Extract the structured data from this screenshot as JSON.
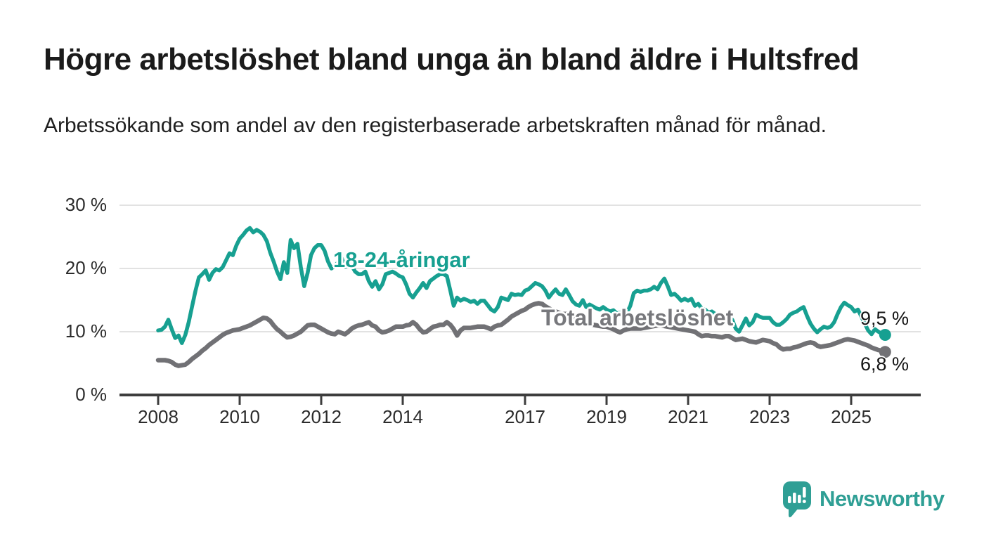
{
  "title": "Högre arbetslöshet bland unga än bland äldre i Hultsfred",
  "subtitle": "Arbetssökande som andel av den registerbaserade arbetskraften månad för månad.",
  "branding": {
    "logo_text": "Newsworthy",
    "logo_icon": "bar-chart-speech-bubble-icon",
    "brand_color": "#2f9f95"
  },
  "colors": {
    "young_line": "#17a091",
    "total_line": "#717175",
    "total_label": "#77787c",
    "grid": "#d8d8d8",
    "axis": "#3d3d3d",
    "tick_text": "#2c2c2c",
    "end_label_text": "#141414"
  },
  "chart_data": {
    "type": "line",
    "x_start_year": 2008,
    "x_step_months": 1,
    "x_end": "2025-11",
    "ylim": [
      0,
      33
    ],
    "grid": "horizontal",
    "y_ticks": [
      {
        "value": 0,
        "label": "0 %"
      },
      {
        "value": 10,
        "label": "10 %"
      },
      {
        "value": 20,
        "label": "20 %"
      },
      {
        "value": 30,
        "label": "30 %"
      }
    ],
    "x_ticks": [
      {
        "year": 2008,
        "label": "2008"
      },
      {
        "year": 2010,
        "label": "2010"
      },
      {
        "year": 2012,
        "label": "2012"
      },
      {
        "year": 2014,
        "label": "2014"
      },
      {
        "year": 2017,
        "label": "2017"
      },
      {
        "year": 2019,
        "label": "2019"
      },
      {
        "year": 2021,
        "label": "2021"
      },
      {
        "year": 2023,
        "label": "2023"
      },
      {
        "year": 2025,
        "label": "2025"
      }
    ],
    "series": [
      {
        "name": "18-24-åringar",
        "color": "#17a091",
        "end_label": "9,5 %",
        "end_value": 9.5,
        "values": [
          10.2,
          10.3,
          10.8,
          11.9,
          10.4,
          9.0,
          9.4,
          8.2,
          9.5,
          11.5,
          14.0,
          16.5,
          18.6,
          19.1,
          19.7,
          18.2,
          19.3,
          19.9,
          19.7,
          20.2,
          21.3,
          22.4,
          22.1,
          23.6,
          24.7,
          25.3,
          26.0,
          26.4,
          25.7,
          26.1,
          25.8,
          25.3,
          24.3,
          22.5,
          21.1,
          19.5,
          18.3,
          21.0,
          19.3,
          24.5,
          23.2,
          23.9,
          20.2,
          17.2,
          19.3,
          22.1,
          23.2,
          23.7,
          23.7,
          22.8,
          21.1,
          20.0,
          20.4,
          21.0,
          21.7,
          20.2,
          20.6,
          20.4,
          19.5,
          19.1,
          19.1,
          19.5,
          18.0,
          17.1,
          18.0,
          16.7,
          17.5,
          19.1,
          19.3,
          19.5,
          19.2,
          18.8,
          18.6,
          17.5,
          16.0,
          15.4,
          16.2,
          16.9,
          17.7,
          16.9,
          18.0,
          18.4,
          18.8,
          19.1,
          19.1,
          18.8,
          16.5,
          14.1,
          15.4,
          14.9,
          15.2,
          15.0,
          14.7,
          14.9,
          14.4,
          14.9,
          14.9,
          14.2,
          13.5,
          13.2,
          13.9,
          15.4,
          15.2,
          15.0,
          16.0,
          15.8,
          15.9,
          15.8,
          16.5,
          16.7,
          17.2,
          17.7,
          17.5,
          17.2,
          16.5,
          15.4,
          16.1,
          16.7,
          16.0,
          15.8,
          16.7,
          15.8,
          14.8,
          14.3,
          14.1,
          15.0,
          13.9,
          14.3,
          14.0,
          13.7,
          13.5,
          13.9,
          13.5,
          13.2,
          13.4,
          12.9,
          13.0,
          13.2,
          13.0,
          14.1,
          16.1,
          16.5,
          16.3,
          16.5,
          16.5,
          16.7,
          17.1,
          16.7,
          17.7,
          18.4,
          17.2,
          15.8,
          16.0,
          15.5,
          14.9,
          15.2,
          14.9,
          15.2,
          14.1,
          14.4,
          13.7,
          13.5,
          13.0,
          13.2,
          12.8,
          12.2,
          11.9,
          11.5,
          12.2,
          11.9,
          10.5,
          10.0,
          11.0,
          12.1,
          11.0,
          11.5,
          12.7,
          12.4,
          12.2,
          12.2,
          12.2,
          11.5,
          11.1,
          11.1,
          11.5,
          12.0,
          12.7,
          13.0,
          13.2,
          13.6,
          13.9,
          12.5,
          11.3,
          10.5,
          9.9,
          10.4,
          10.8,
          10.6,
          10.8,
          11.5,
          12.8,
          13.9,
          14.6,
          14.2,
          13.9,
          13.2,
          13.5,
          12.4,
          11.3,
          10.2,
          9.6,
          10.4,
          10.0,
          9.7,
          9.5
        ]
      },
      {
        "name": "Total arbetslöshet",
        "color": "#717175",
        "end_label": "6,8 %",
        "end_value": 6.8,
        "values": [
          5.5,
          5.5,
          5.5,
          5.4,
          5.2,
          4.8,
          4.6,
          4.7,
          4.8,
          5.2,
          5.7,
          6.1,
          6.5,
          7.0,
          7.4,
          7.9,
          8.3,
          8.7,
          9.1,
          9.5,
          9.8,
          10.0,
          10.2,
          10.3,
          10.4,
          10.6,
          10.8,
          11.0,
          11.3,
          11.6,
          11.9,
          12.2,
          12.1,
          11.7,
          11.0,
          10.4,
          10.0,
          9.5,
          9.1,
          9.2,
          9.4,
          9.7,
          10.0,
          10.5,
          11.0,
          11.1,
          11.1,
          10.8,
          10.5,
          10.2,
          9.9,
          9.7,
          9.6,
          10.0,
          9.8,
          9.6,
          10.0,
          10.5,
          10.8,
          11.0,
          11.1,
          11.3,
          11.5,
          11.0,
          10.8,
          10.2,
          9.9,
          10.0,
          10.2,
          10.5,
          10.8,
          10.8,
          10.8,
          11.0,
          11.1,
          11.5,
          11.1,
          10.4,
          9.9,
          10.0,
          10.4,
          10.8,
          10.9,
          11.1,
          11.1,
          11.5,
          11.1,
          10.4,
          9.4,
          10.2,
          10.6,
          10.6,
          10.6,
          10.7,
          10.8,
          10.8,
          10.8,
          10.6,
          10.4,
          10.8,
          11.0,
          11.1,
          11.5,
          11.9,
          12.4,
          12.7,
          13.0,
          13.3,
          13.5,
          13.9,
          14.2,
          14.4,
          14.5,
          14.4,
          14.0,
          13.7,
          13.4,
          13.2,
          13.0,
          12.8,
          12.8,
          12.4,
          12.0,
          11.9,
          11.7,
          11.5,
          11.3,
          11.2,
          11.1,
          11.0,
          10.9,
          10.8,
          10.8,
          10.6,
          10.4,
          10.1,
          9.9,
          10.2,
          10.4,
          10.5,
          10.5,
          10.5,
          10.5,
          10.6,
          10.7,
          10.8,
          10.9,
          11.0,
          11.0,
          10.9,
          10.8,
          10.7,
          10.6,
          10.5,
          10.4,
          10.3,
          10.2,
          10.1,
          10.0,
          9.6,
          9.3,
          9.4,
          9.4,
          9.3,
          9.3,
          9.2,
          9.1,
          9.3,
          9.3,
          9.0,
          8.7,
          8.8,
          8.9,
          8.7,
          8.5,
          8.4,
          8.3,
          8.5,
          8.7,
          8.6,
          8.5,
          8.2,
          8.0,
          7.5,
          7.2,
          7.3,
          7.3,
          7.5,
          7.6,
          7.8,
          8.0,
          8.2,
          8.3,
          8.2,
          7.8,
          7.6,
          7.7,
          7.8,
          7.9,
          8.1,
          8.3,
          8.5,
          8.7,
          8.8,
          8.7,
          8.6,
          8.4,
          8.2,
          8.0,
          7.8,
          7.5,
          7.3,
          7.1,
          7.0,
          6.8
        ]
      }
    ]
  }
}
